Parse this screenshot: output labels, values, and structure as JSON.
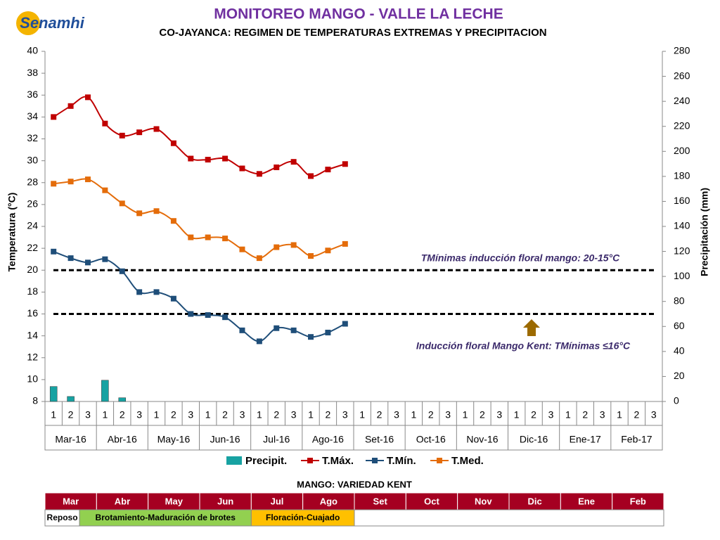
{
  "logo": {
    "name": "Senamhi"
  },
  "chart_data": {
    "type": "combo",
    "title": "MONITOREO MANGO - VALLE LA LECHE",
    "subtitle": "CO-JAYANCA: REGIMEN DE TEMPERATURAS EXTREMAS Y PRECIPITACION",
    "ylabel": "Temperatura (°C)",
    "y2label": "Precipitación (mm)",
    "categories": [
      "1",
      "2",
      "3",
      "1",
      "2",
      "3",
      "1",
      "2",
      "3",
      "1",
      "2",
      "3",
      "1",
      "2",
      "3",
      "1",
      "2",
      "3",
      "1",
      "2",
      "3",
      "1",
      "2",
      "3",
      "1",
      "2",
      "3",
      "1",
      "2",
      "3",
      "1",
      "2",
      "3",
      "1",
      "2",
      "3"
    ],
    "groups": [
      "Mar-16",
      "Abr-16",
      "May-16",
      "Jun-16",
      "Jul-16",
      "Ago-16",
      "Set-16",
      "Oct-16",
      "Nov-16",
      "Dic-16",
      "Ene-17",
      "Feb-17"
    ],
    "ylim": [
      8,
      40
    ],
    "yticks": [
      8,
      10,
      12,
      14,
      16,
      18,
      20,
      22,
      24,
      26,
      28,
      30,
      32,
      34,
      36,
      38,
      40
    ],
    "y2lim": [
      0,
      280
    ],
    "y2ticks": [
      0,
      20,
      40,
      60,
      80,
      100,
      120,
      140,
      160,
      180,
      200,
      220,
      240,
      260,
      280
    ],
    "legend": "bottom",
    "series": [
      {
        "name": "Precipit.",
        "type": "bar",
        "axis": "y2",
        "color": "#17a2a2",
        "values": [
          12,
          4,
          0,
          17,
          3,
          0,
          0,
          0,
          0,
          0,
          0,
          0,
          0,
          0,
          0,
          0,
          0,
          0,
          null,
          null,
          null,
          null,
          null,
          null,
          null,
          null,
          null,
          null,
          null,
          null,
          null,
          null,
          null,
          null,
          null,
          null
        ]
      },
      {
        "name": "T.Máx.",
        "type": "line",
        "color": "#c00000",
        "values": [
          34.0,
          35.0,
          35.8,
          33.4,
          32.3,
          32.6,
          32.9,
          31.6,
          30.2,
          30.1,
          30.2,
          29.3,
          28.8,
          29.4,
          29.9,
          28.6,
          29.2,
          29.7,
          null,
          null,
          null,
          null,
          null,
          null,
          null,
          null,
          null,
          null,
          null,
          null,
          null,
          null,
          null,
          null,
          null,
          null
        ]
      },
      {
        "name": "T.Mín.",
        "type": "line",
        "color": "#1f4e79",
        "values": [
          21.7,
          21.1,
          20.7,
          21.0,
          19.9,
          18.0,
          18.0,
          17.4,
          16.0,
          15.9,
          15.7,
          14.5,
          13.5,
          14.7,
          14.5,
          13.9,
          14.3,
          15.1,
          null,
          null,
          null,
          null,
          null,
          null,
          null,
          null,
          null,
          null,
          null,
          null,
          null,
          null,
          null,
          null,
          null,
          null
        ]
      },
      {
        "name": "T.Med.",
        "type": "line",
        "color": "#e46c0a",
        "values": [
          27.9,
          28.1,
          28.3,
          27.3,
          26.1,
          25.2,
          25.4,
          24.5,
          23.0,
          23.0,
          22.9,
          21.9,
          21.1,
          22.1,
          22.3,
          21.3,
          21.8,
          22.4,
          null,
          null,
          null,
          null,
          null,
          null,
          null,
          null,
          null,
          null,
          null,
          null,
          null,
          null,
          null,
          null,
          null,
          null
        ]
      }
    ],
    "hlines": [
      20,
      16
    ],
    "annotations": [
      "TMínimas inducción floral mango: 20-15°C",
      "Inducción floral  Mango Kent: TMínimas ≤16°C"
    ]
  },
  "table": {
    "title": "MANGO: VARIEDAD KENT",
    "months": [
      "Mar",
      "Abr",
      "May",
      "Jun",
      "Jul",
      "Ago",
      "Set",
      "Oct",
      "Nov",
      "Dic",
      "Ene",
      "Feb"
    ],
    "phases": [
      {
        "name": "Reposo",
        "color": "#ffffff"
      },
      {
        "name": "Brotamiento-Maduración de brotes",
        "color": "#92d050"
      },
      {
        "name": "Floración-Cuajado",
        "color": "#ffc000"
      }
    ]
  }
}
